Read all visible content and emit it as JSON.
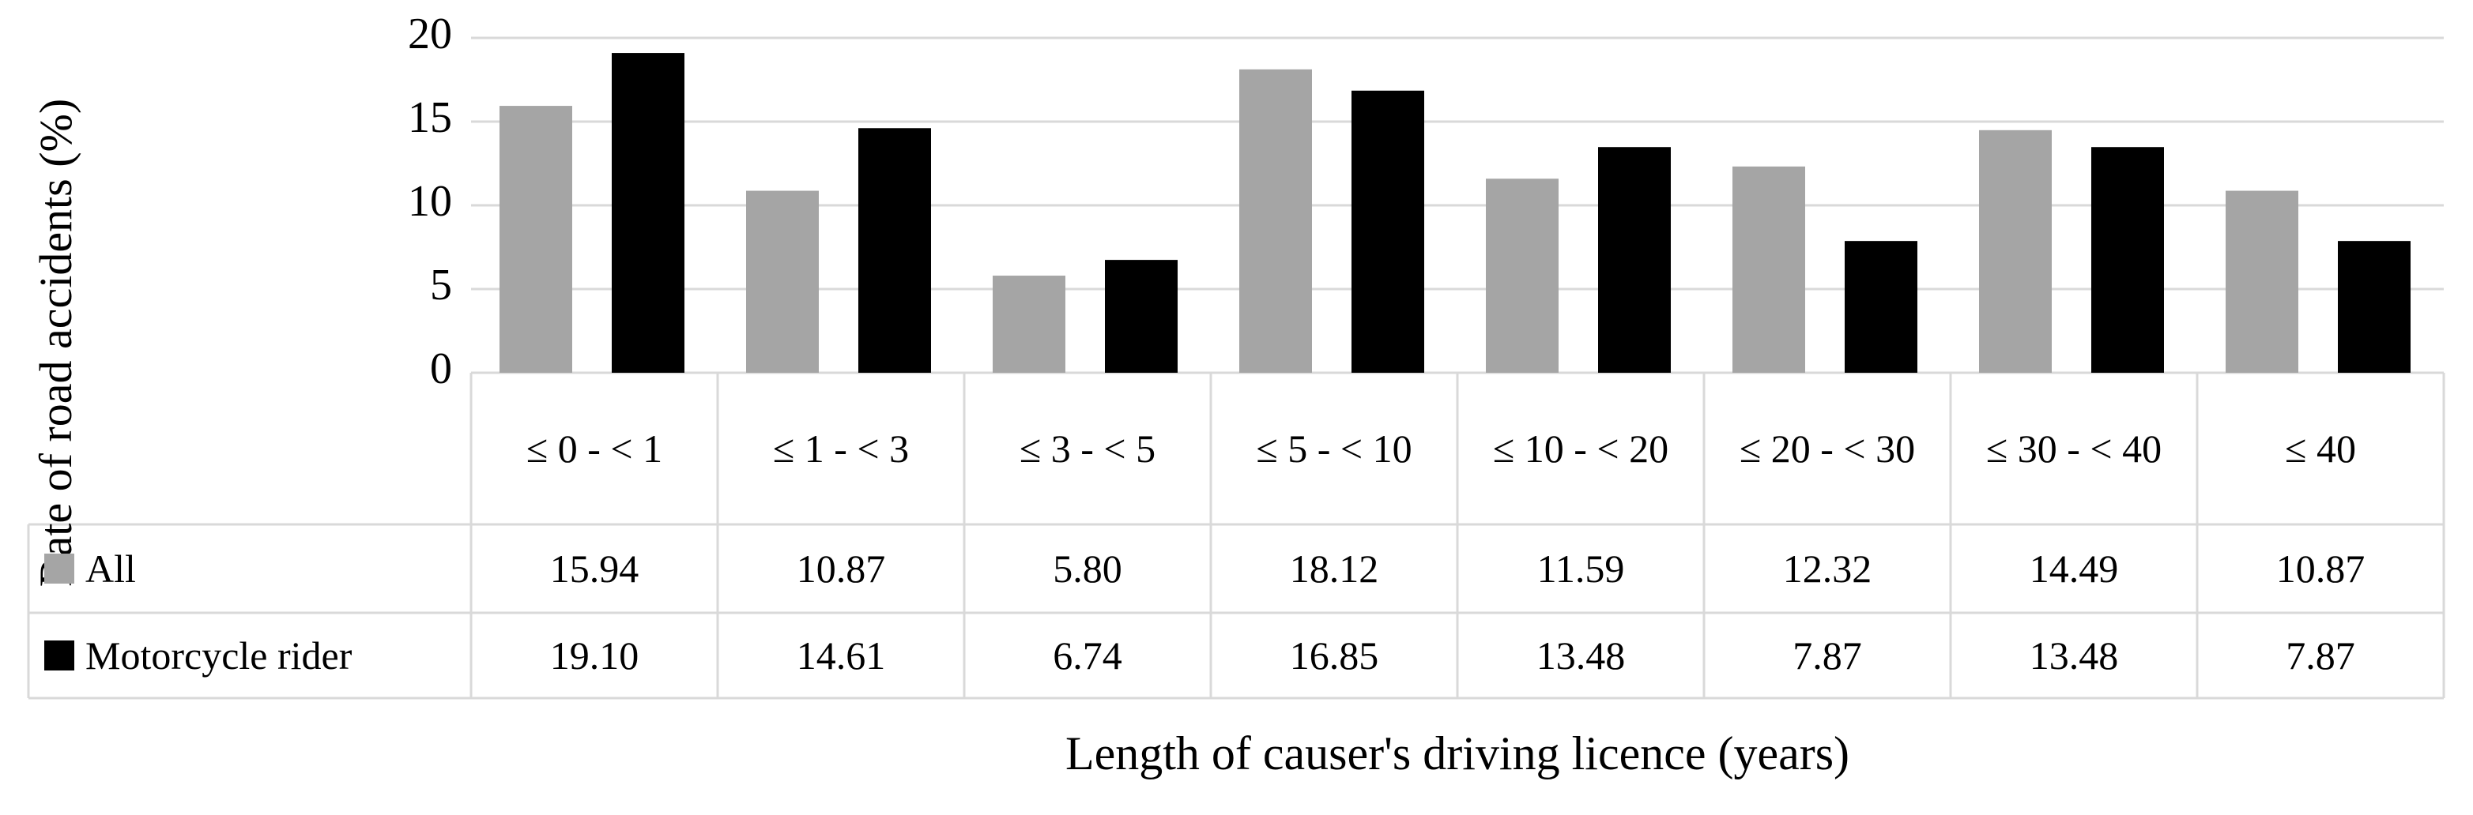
{
  "chart_data": {
    "type": "bar",
    "y_label": "Rate of road accidents (%)",
    "x_label": "Length of causer's driving licence (years)",
    "categories": [
      "≤ 0 - < 1",
      "≤ 1 - < 3",
      "≤ 3 - < 5",
      "≤ 5 - < 10",
      "≤ 10 - < 20",
      "≤ 20 - < 30",
      "≤ 30 - < 40",
      "≤ 40"
    ],
    "series": [
      {
        "name": "All",
        "color": "#a5a5a5",
        "values": [
          15.94,
          10.87,
          5.8,
          18.12,
          11.59,
          12.32,
          14.49,
          10.87
        ],
        "value_labels": [
          "15.94",
          "10.87",
          "5.80",
          "18.12",
          "11.59",
          "12.32",
          "14.49",
          "10.87"
        ]
      },
      {
        "name": "Motorcycle rider",
        "color": "#000000",
        "values": [
          19.1,
          14.61,
          6.74,
          16.85,
          13.48,
          7.87,
          13.48,
          7.87
        ],
        "value_labels": [
          "19.10",
          "14.61",
          "6.74",
          "16.85",
          "13.48",
          "7.87",
          "13.48",
          "7.87"
        ]
      }
    ],
    "ylim": [
      0,
      20
    ],
    "yticks": [
      0,
      5,
      10,
      15,
      20
    ],
    "grid": true
  }
}
